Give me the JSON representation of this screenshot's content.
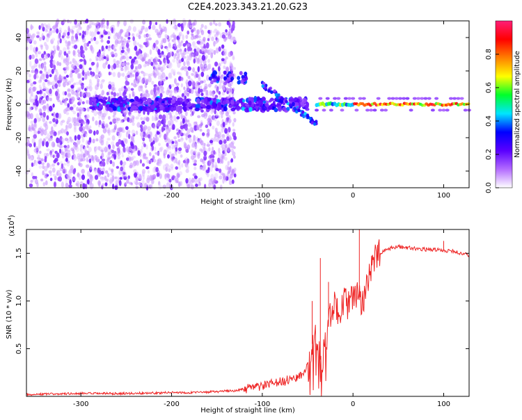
{
  "title": "C2E4.2023.343.21.20.G23",
  "chart_data": [
    {
      "type": "heatmap",
      "xlabel": "Height of straight line (km)",
      "ylabel": "Frequency (Hz)",
      "xlim": [
        -360,
        128
      ],
      "ylim": [
        -50,
        50
      ],
      "xticks": [
        -300,
        -200,
        -100,
        0,
        100
      ],
      "yticks": [
        -40,
        -20,
        0,
        20,
        40
      ],
      "colorbar": {
        "label": "Normalized spectral amplitude",
        "range": [
          0,
          1
        ],
        "ticks": [
          "0.0",
          "0.2",
          "0.4",
          "0.6",
          "0.8"
        ],
        "tick_values": [
          0,
          0.2,
          0.4,
          0.6,
          0.8
        ],
        "colormap": [
          "#ffffff",
          "#b36bff",
          "#5a00ff",
          "#0000ff",
          "#00e5ff",
          "#00ff2a",
          "#ffff00",
          "#ff8000",
          "#ff0000",
          "#ff1e78"
        ]
      },
      "features": {
        "noise_region_x": [
          -360,
          -130
        ],
        "carrier_band": {
          "x": [
            -290,
            -50
          ],
          "freq": 0
        },
        "upper_bursts": [
          {
            "x": -153,
            "freq": 16
          },
          {
            "x": -137,
            "freq": 16
          },
          {
            "x": -122,
            "freq": 16
          }
        ],
        "converging_branch": {
          "from": [
            -100,
            12
          ],
          "to": [
            -40,
            -12
          ]
        },
        "strong_carrier": {
          "x": [
            -40,
            128
          ],
          "freq": 0
        }
      }
    },
    {
      "type": "line",
      "xlabel": "Height of straight line (km)",
      "ylabel": "SNR (10 * v/v)",
      "y_exponent": "(x10",
      "y_exponent_power": "4",
      "y_exponent_close": ")",
      "xlim": [
        -360,
        128
      ],
      "ylim": [
        0,
        1.75
      ],
      "xticks": [
        -300,
        -200,
        -100,
        0,
        100
      ],
      "yticks": [
        0.5,
        1.0,
        1.5
      ],
      "ytick_labels": [
        "0.5",
        "1.0",
        "1.5"
      ],
      "series": [
        {
          "color": "#ee2222",
          "x": [
            -360,
            -300,
            -250,
            -200,
            -170,
            -150,
            -130,
            -110,
            -90,
            -75,
            -62,
            -55,
            -48,
            -45,
            -42,
            -38,
            -35,
            -30,
            -25,
            -20,
            -15,
            -10,
            -5,
            0,
            5,
            10,
            15,
            20,
            25,
            30,
            40,
            50,
            60,
            70,
            80,
            90,
            100,
            110,
            120,
            128
          ],
          "values": [
            0.02,
            0.03,
            0.03,
            0.04,
            0.04,
            0.05,
            0.06,
            0.09,
            0.13,
            0.16,
            0.2,
            0.25,
            0.35,
            0.55,
            0.65,
            0.45,
            0.35,
            0.55,
            0.85,
            0.95,
            0.9,
            1.0,
            0.95,
            1.05,
            1.05,
            0.95,
            1.2,
            1.35,
            1.45,
            1.5,
            1.55,
            1.57,
            1.56,
            1.55,
            1.54,
            1.54,
            1.53,
            1.52,
            1.5,
            1.48
          ]
        }
      ],
      "spikes": [
        {
          "x": 7,
          "value": 1.75
        },
        {
          "x": 100,
          "value": 1.63
        },
        {
          "x": -36,
          "value": 1.45
        },
        {
          "x": -27,
          "value": 1.2
        },
        {
          "x": -45,
          "value": 1.0
        }
      ]
    }
  ]
}
